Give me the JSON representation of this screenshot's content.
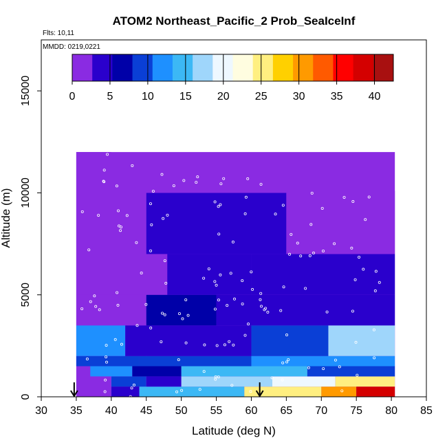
{
  "chart_data": {
    "type": "heatmap",
    "title": "ATOM2 Northeast_Pacific_2 Prob_SeaIceInf",
    "annotations": {
      "flights": "Flts: 10,11",
      "dates": "MMDD: 0219,0221"
    },
    "xlabel": "Latitude (deg N)",
    "ylabel": "Altitude (m)",
    "xlim": [
      30,
      85
    ],
    "ylim": [
      0,
      17500
    ],
    "xticks": [
      30,
      35,
      40,
      45,
      50,
      55,
      60,
      65,
      70,
      75,
      80,
      85
    ],
    "yticks": [
      0,
      5000,
      10000,
      15000
    ],
    "colorbar": {
      "ticks": [
        0,
        5,
        10,
        15,
        20,
        25,
        30,
        35,
        40
      ],
      "range": [
        0,
        42.5
      ],
      "colors": [
        "#8a2be2",
        "#2a00cc",
        "#0000a8",
        "#0a3fd6",
        "#1e90ff",
        "#3cb8f5",
        "#9fd6fb",
        "#eef8ff",
        "#fffde0",
        "#ffef80",
        "#ffd000",
        "#ff9a00",
        "#ff5a00",
        "#ff0000",
        "#d40000",
        "#a81010"
      ]
    },
    "arrow_markers_lat": [
      34.7,
      61.2
    ],
    "grid": false,
    "legend": "colorbar-top",
    "coverage": [
      {
        "lat": [
          35,
          40
        ],
        "alt": [
          0,
          12000
        ]
      },
      {
        "lat": [
          40,
          45
        ],
        "alt": [
          0,
          11500
        ]
      },
      {
        "lat": [
          45,
          55
        ],
        "alt": [
          0,
          11400
        ]
      },
      {
        "lat": [
          55,
          70
        ],
        "alt": [
          0,
          10800
        ]
      },
      {
        "lat": [
          70,
          80.5
        ],
        "alt": [
          0,
          10100
        ]
      }
    ],
    "bands": [
      {
        "alt": [
          0,
          500
        ],
        "segments": [
          {
            "lat": [
              40,
              44
            ],
            "value": 5
          },
          {
            "lat": [
              44,
              59
            ],
            "value": 15
          },
          {
            "lat": [
              59,
              70
            ],
            "value": 24
          },
          {
            "lat": [
              70,
              75
            ],
            "value": 30
          },
          {
            "lat": [
              75,
              80.5
            ],
            "value": 38
          }
        ]
      },
      {
        "alt": [
          500,
          1000
        ],
        "segments": [
          {
            "lat": [
              40,
              45
            ],
            "value": 9
          },
          {
            "lat": [
              45,
              50
            ],
            "value": 3
          },
          {
            "lat": [
              50,
              63
            ],
            "value": 16
          },
          {
            "lat": [
              63,
              72
            ],
            "value": 20
          },
          {
            "lat": [
              72,
              80.5
            ],
            "value": 26
          }
        ]
      },
      {
        "alt": [
          1000,
          1500
        ],
        "segments": [
          {
            "lat": [
              37,
              43
            ],
            "value": 12
          },
          {
            "lat": [
              43,
              50
            ],
            "value": 7
          },
          {
            "lat": [
              50,
              68
            ],
            "value": 14
          },
          {
            "lat": [
              68,
              80.5
            ],
            "value": 9
          }
        ]
      },
      {
        "alt": [
          1500,
          2000
        ],
        "segments": [
          {
            "lat": [
              35,
              44
            ],
            "value": 8
          },
          {
            "lat": [
              44,
              60
            ],
            "value": 10
          },
          {
            "lat": [
              60,
              80.5
            ],
            "value": 13
          }
        ]
      },
      {
        "alt": [
          2000,
          3500
        ],
        "segments": [
          {
            "lat": [
              35,
              42
            ],
            "value": 12
          },
          {
            "lat": [
              42,
              60
            ],
            "value": 5
          },
          {
            "lat": [
              60,
              71
            ],
            "value": 9
          },
          {
            "lat": [
              71,
              80.5
            ],
            "value": 16
          }
        ]
      },
      {
        "alt": [
          3500,
          5000
        ],
        "segments": [
          {
            "lat": [
              35,
              45
            ],
            "value": 2
          },
          {
            "lat": [
              45,
              55
            ],
            "value": 6
          },
          {
            "lat": [
              55,
              80.5
            ],
            "value": 4
          }
        ]
      },
      {
        "alt": [
          5000,
          7000
        ],
        "segments": [
          {
            "lat": [
              35,
              48
            ],
            "value": 2
          },
          {
            "lat": [
              48,
              60
            ],
            "value": 5
          },
          {
            "lat": [
              60,
              80.5
            ],
            "value": 3
          }
        ]
      },
      {
        "alt": [
          7000,
          10000
        ],
        "segments": [
          {
            "lat": [
              35,
              45
            ],
            "value": 1
          },
          {
            "lat": [
              45,
              65
            ],
            "value": 4
          },
          {
            "lat": [
              65,
              80.5
            ],
            "value": 1
          }
        ]
      },
      {
        "alt": [
          10000,
          12000
        ],
        "segments": [
          {
            "lat": [
              35,
              80.5
            ],
            "value": 0
          }
        ]
      }
    ]
  }
}
